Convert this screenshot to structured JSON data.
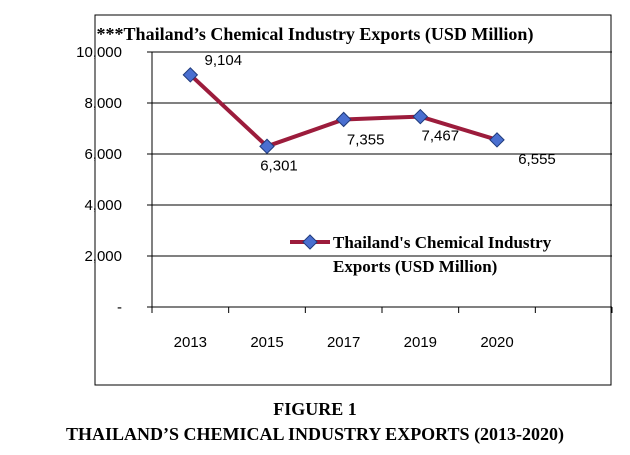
{
  "chart_data": {
    "type": "line",
    "title": "***Thailand’s Chemical Industry Exports (USD Million)",
    "categories": [
      "2013",
      "2015",
      "2017",
      "2019",
      "2020"
    ],
    "series": [
      {
        "name": "Thailand's Chemical Industry Exports (USD Million)",
        "values": [
          9104,
          6301,
          7355,
          7467,
          6555
        ],
        "color": "#9c1c3c",
        "marker_color": "#4a6fd0"
      }
    ],
    "data_labels": [
      "9,104",
      "6,301",
      "7,355",
      "7,467",
      "6,555"
    ],
    "y_tick_labels": [
      "-",
      "2,000",
      "4,000",
      "6,000",
      "8,000",
      "10,000"
    ],
    "ylim": [
      0,
      10000
    ],
    "xlabel": "",
    "ylabel": "",
    "grid": "horizontal",
    "legend_placement": "center-right",
    "legend_lines": [
      "Thailand's Chemical Industry",
      "Exports  (USD Million)"
    ]
  },
  "caption": {
    "line1": "FIGURE 1",
    "line2": "THAILAND’S CHEMICAL INDUSTRY EXPORTS (2013-2020)"
  }
}
